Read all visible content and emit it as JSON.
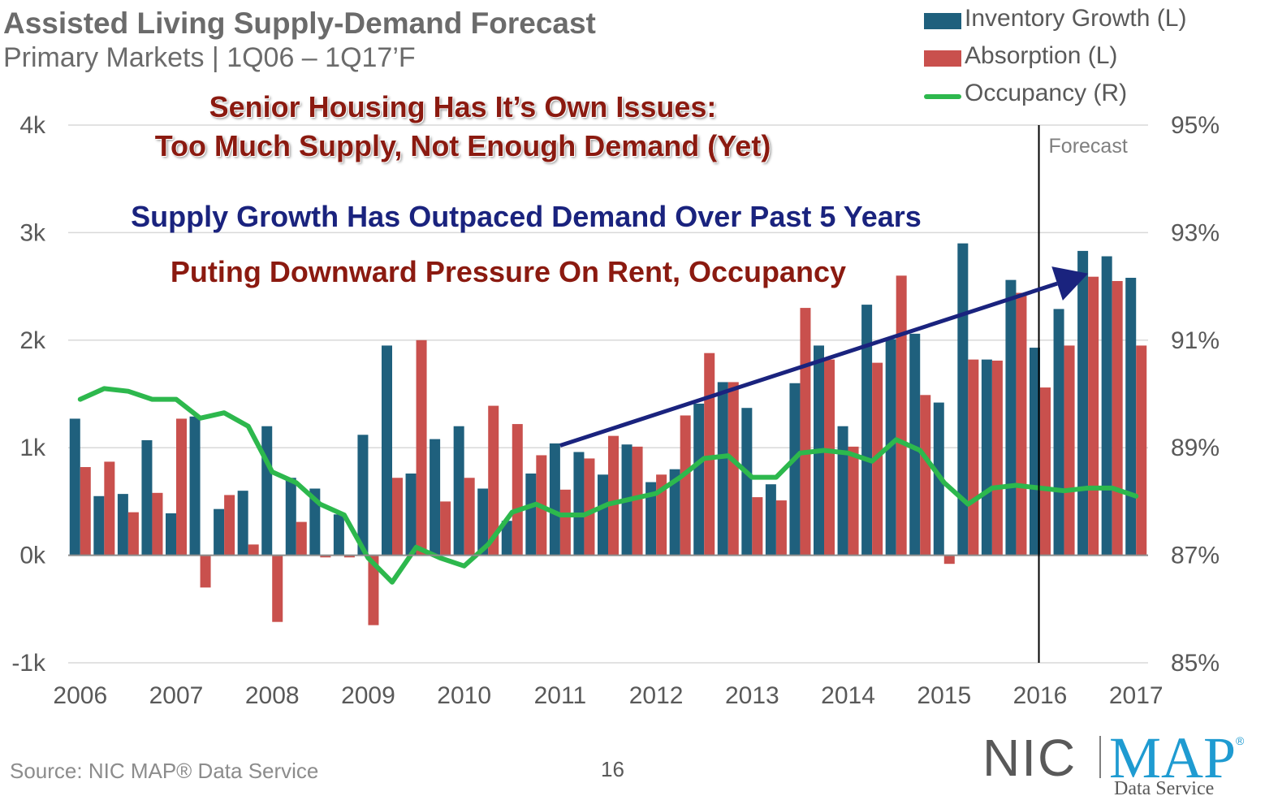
{
  "header": {
    "title": "Assisted Living Supply-Demand Forecast",
    "subtitle": "Primary Markets | 1Q06 – 1Q17’F"
  },
  "headlines": {
    "line1": "Senior Housing Has It’s Own Issues:",
    "line2": "Too Much Supply, Not Enough Demand (Yet)",
    "line3": "Supply Growth Has Outpaced Demand Over Past 5 Years",
    "line4": "Puting Downward Pressure On Rent, Occupancy"
  },
  "colors": {
    "inventory": "#1f607d",
    "absorption": "#c9504d",
    "occupancy": "#2db84d",
    "arrow": "#1a237e",
    "grid": "#d9d9d9",
    "axis_text": "#595959"
  },
  "footer": {
    "source": "Source: NIC MAP® Data Service",
    "page": "16"
  },
  "logo": {
    "left_text": "NIC",
    "right_text": "MAP",
    "registered": "®",
    "tagline": "Data Service"
  },
  "chart_data": {
    "type": "bar",
    "title": "Assisted Living Supply-Demand Forecast",
    "subtitle": "Primary Markets | 1Q06 – 1Q17’F",
    "x_tick_labels": [
      "2006",
      "2007",
      "2008",
      "2009",
      "2010",
      "2011",
      "2012",
      "2013",
      "2014",
      "2015",
      "2016",
      "2017"
    ],
    "quarters": [
      "1Q06",
      "2Q06",
      "3Q06",
      "4Q06",
      "1Q07",
      "2Q07",
      "3Q07",
      "4Q07",
      "1Q08",
      "2Q08",
      "3Q08",
      "4Q08",
      "1Q09",
      "2Q09",
      "3Q09",
      "4Q09",
      "1Q10",
      "2Q10",
      "3Q10",
      "4Q10",
      "1Q11",
      "2Q11",
      "3Q11",
      "4Q11",
      "1Q12",
      "2Q12",
      "3Q12",
      "4Q12",
      "1Q13",
      "2Q13",
      "3Q13",
      "4Q13",
      "1Q14",
      "2Q14",
      "3Q14",
      "4Q14",
      "1Q15",
      "2Q15",
      "3Q15",
      "4Q15",
      "1Q16",
      "2Q16",
      "3Q16",
      "4Q16",
      "1Q17"
    ],
    "y_left": {
      "label": "",
      "ticks": [
        "-1k",
        "0k",
        "1k",
        "2k",
        "3k",
        "4k"
      ],
      "range": [
        -1000,
        4000
      ]
    },
    "y_right": {
      "label": "",
      "ticks": [
        "85%",
        "87%",
        "89%",
        "91%",
        "93%",
        "95%"
      ],
      "range": [
        85,
        95
      ]
    },
    "grid": true,
    "legend_position": "top-right",
    "series": [
      {
        "name": "Inventory Growth (L)",
        "type": "bar",
        "axis": "left",
        "values": [
          1270,
          550,
          570,
          1070,
          390,
          1290,
          430,
          600,
          1200,
          720,
          620,
          380,
          1120,
          1950,
          760,
          1080,
          1200,
          620,
          320,
          760,
          1040,
          960,
          750,
          1030,
          680,
          800,
          1410,
          1610,
          1370,
          660,
          1600,
          1950,
          1200,
          2330,
          2010,
          2060,
          1420,
          2900,
          1820,
          2560,
          1930,
          2290,
          2830,
          2780,
          2580
        ]
      },
      {
        "name": "Absorption (L)",
        "type": "bar",
        "axis": "left",
        "values": [
          820,
          870,
          400,
          580,
          1270,
          -300,
          560,
          100,
          -620,
          310,
          -20,
          -20,
          -650,
          720,
          2000,
          500,
          720,
          1390,
          1220,
          930,
          610,
          900,
          1110,
          1010,
          750,
          1300,
          1880,
          1610,
          540,
          510,
          2300,
          1820,
          1010,
          1790,
          2600,
          1490,
          -80,
          1820,
          1810,
          2440,
          1560,
          1950,
          2590,
          2550,
          1950
        ]
      },
      {
        "name": "Occupancy (R)",
        "type": "line",
        "axis": "right",
        "values": [
          89.9,
          90.1,
          90.05,
          89.9,
          89.9,
          89.55,
          89.65,
          89.4,
          88.55,
          88.35,
          87.95,
          87.75,
          86.95,
          86.5,
          87.15,
          86.95,
          86.8,
          87.2,
          87.8,
          87.95,
          87.75,
          87.75,
          87.95,
          88.05,
          88.15,
          88.45,
          88.8,
          88.85,
          88.45,
          88.45,
          88.9,
          88.95,
          88.9,
          88.75,
          89.15,
          88.95,
          88.35,
          87.95,
          88.25,
          88.3,
          88.25,
          88.2,
          88.25,
          88.25,
          88.1
        ]
      }
    ],
    "annotations": [
      {
        "text": "Forecast",
        "type": "vertical_line",
        "at": "1Q16"
      },
      {
        "text": "",
        "type": "trend_arrow",
        "from": {
          "x": "1Q11",
          "y": 1020
        },
        "to": {
          "x": "3Q16",
          "y": 2620
        }
      }
    ]
  }
}
